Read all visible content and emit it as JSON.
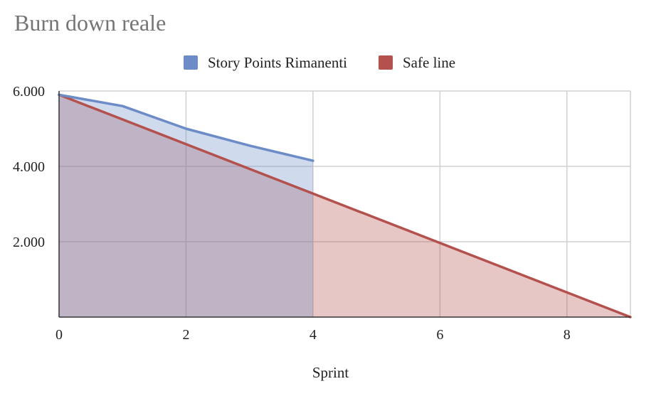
{
  "chart_data": {
    "type": "area",
    "title": "Burn down reale",
    "xlabel": "Sprint",
    "ylabel": "",
    "xlim": [
      0,
      9
    ],
    "ylim": [
      0,
      6000
    ],
    "x_ticks": [
      0,
      2,
      4,
      6,
      8
    ],
    "x_tick_labels": [
      "0",
      "2",
      "4",
      "6",
      "8"
    ],
    "y_ticks": [
      2000,
      4000,
      6000
    ],
    "y_tick_labels": [
      "2.000",
      "4.000",
      "6.000"
    ],
    "grid": true,
    "legend_position": "top",
    "series": [
      {
        "name": "Story Points Rimanenti",
        "color": "#6b8cc7",
        "x": [
          0,
          1,
          2,
          3,
          4
        ],
        "values": [
          5900,
          5600,
          5000,
          4550,
          4150
        ]
      },
      {
        "name": "Safe line",
        "color": "#b5514d",
        "x": [
          0,
          9
        ],
        "values": [
          5900,
          0
        ]
      }
    ]
  }
}
